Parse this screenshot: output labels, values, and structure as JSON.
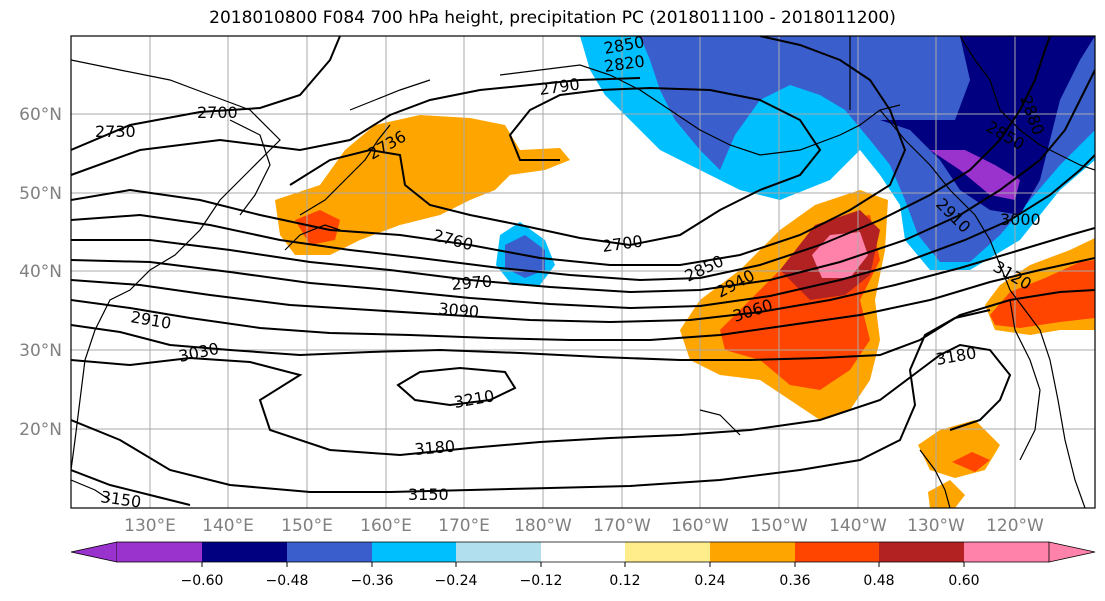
{
  "title": "2018010800 F084 700 hPa height, precipitation PC (2018011100 - 2018011200)",
  "map": {
    "lon_labels": [
      "130°E",
      "140°E",
      "150°E",
      "160°E",
      "170°E",
      "180°W",
      "170°W",
      "160°W",
      "150°W",
      "140°W",
      "130°W",
      "120°W"
    ],
    "lat_labels": [
      "60°N",
      "50°N",
      "40°N",
      "30°N",
      "20°N"
    ],
    "contour_labels": [
      "2700",
      "2730",
      "2736",
      "2760",
      "2790",
      "2820",
      "2850",
      "2850",
      "2850",
      "2880",
      "2910",
      "2940",
      "2970",
      "3000",
      "3030",
      "3060",
      "3090",
      "3120",
      "3150",
      "3180",
      "3180",
      "3210",
      "2700",
      "2910",
      "3150"
    ],
    "grid": true
  },
  "colorbar": {
    "ticks": [
      "−0.60",
      "−0.48",
      "−0.36",
      "−0.24",
      "−0.12",
      "0.12",
      "0.24",
      "0.36",
      "0.48",
      "0.60"
    ],
    "colors": [
      "#9a32cd",
      "#000080",
      "#3a5fcd",
      "#00bfff",
      "#b2dfee",
      "#ffffff",
      "#ffec8b",
      "#ffa500",
      "#ff4500",
      "#b22222",
      "#ff82ab"
    ]
  }
}
